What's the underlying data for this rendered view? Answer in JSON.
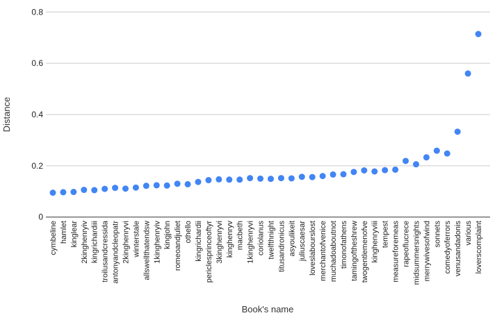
{
  "chart_data": {
    "type": "scatter",
    "title": "",
    "xlabel": "Book's name",
    "ylabel": "Distance",
    "ylim": [
      0,
      0.8
    ],
    "yticks": [
      0,
      0.2,
      0.4,
      0.6,
      0.8
    ],
    "ytick_labels": [
      "0",
      "0.2",
      "0.4",
      "0.6",
      "0.8"
    ],
    "grid": true,
    "legend": "none",
    "point_color": "#4285f4",
    "gridline_color": "#cccccc",
    "baseline_color": "#333333",
    "categories": [
      "cymbeline",
      "hamlet",
      "kinglear",
      "2kinghenryiv",
      "kingrichardiii",
      "troilusandcressida",
      "antonyandcleopatr",
      "2kinghenryvi",
      "winterstale",
      "allswellthatendsw",
      "1kinghenryiv",
      "kingjohn",
      "romeoandjuliet",
      "othello",
      "kingrichardii",
      "periclesprinceoftyr",
      "3kinghenryvi",
      "kinghenryv",
      "macbeth",
      "1kinghenryvi",
      "coriolanus",
      "twelfthnight",
      "titusandronicus",
      "asyoulikeit",
      "juliuscaesar",
      "loveslabourslost",
      "merchantofvenice",
      "muchadoaboutnot",
      "timonofathens",
      "tamingoftheshrew",
      "twogentlemenofve",
      "kinghenryviii",
      "tempest",
      "measureforemeas",
      "rapeoflucrece",
      "midsummersnights",
      "merrywivesofwind",
      "sonnets",
      "comedyoferrors",
      "venusandadonis",
      "various",
      "loverscomplaint"
    ],
    "values": [
      0.095,
      0.097,
      0.098,
      0.106,
      0.105,
      0.11,
      0.114,
      0.111,
      0.115,
      0.122,
      0.124,
      0.123,
      0.13,
      0.128,
      0.137,
      0.144,
      0.147,
      0.146,
      0.146,
      0.152,
      0.15,
      0.149,
      0.152,
      0.151,
      0.157,
      0.156,
      0.16,
      0.166,
      0.167,
      0.176,
      0.182,
      0.178,
      0.183,
      0.185,
      0.219,
      0.206,
      0.233,
      0.259,
      0.248,
      0.333,
      0.56,
      0.714
    ]
  }
}
